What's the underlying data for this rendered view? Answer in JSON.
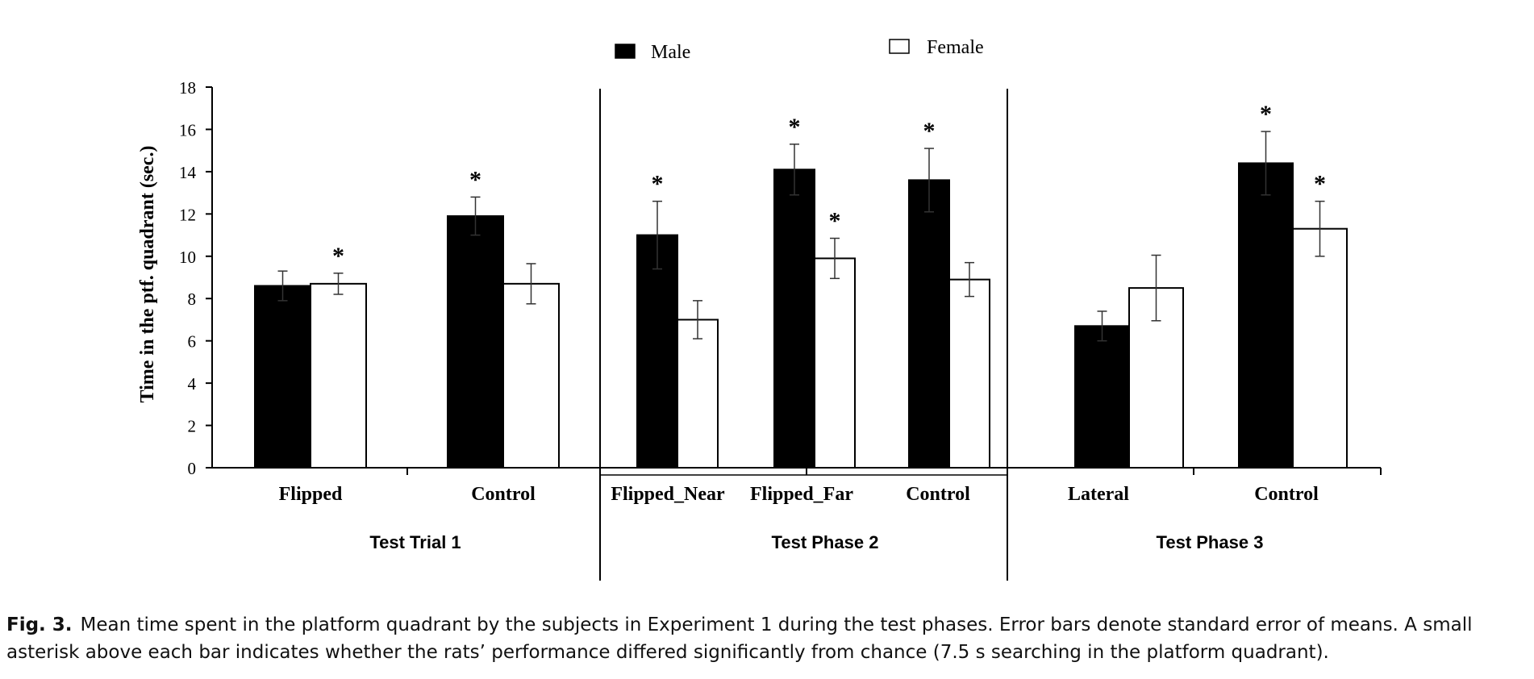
{
  "chart_data": {
    "type": "bar",
    "ylabel": "Time in the ptf. quadrant (sec.)",
    "ylim": [
      0,
      18
    ],
    "yticks": [
      "0",
      "2",
      "4",
      "6",
      "8",
      "10",
      "12",
      "14",
      "16",
      "18"
    ],
    "legend": [
      {
        "name": "Male",
        "color": "#000000"
      },
      {
        "name": "Female",
        "color": "#ffffff"
      }
    ],
    "groups": [
      {
        "label": "Test Trial 1",
        "categories": [
          "Flipped",
          "Control"
        ]
      },
      {
        "label": "Test Phase 2",
        "categories": [
          "Flipped_Near",
          "Flipped_Far",
          "Control"
        ]
      },
      {
        "label": "Test Phase 3",
        "categories": [
          "Lateral",
          "Control"
        ]
      }
    ],
    "categories": [
      "Flipped",
      "Control",
      "Flipped_Near",
      "Flipped_Far",
      "Control",
      "Lateral",
      "Control"
    ],
    "series": [
      {
        "name": "Male",
        "values": [
          8.6,
          11.9,
          11.0,
          14.1,
          13.6,
          6.7,
          14.4
        ],
        "errors": [
          0.7,
          0.9,
          1.6,
          1.2,
          1.5,
          0.7,
          1.5
        ],
        "significant": [
          false,
          true,
          true,
          true,
          true,
          false,
          true
        ]
      },
      {
        "name": "Female",
        "values": [
          8.7,
          8.7,
          7.0,
          9.9,
          8.9,
          8.5,
          11.3
        ],
        "errors": [
          0.5,
          0.95,
          0.9,
          0.95,
          0.8,
          1.55,
          1.3
        ],
        "significant": [
          true,
          false,
          false,
          true,
          false,
          false,
          true
        ]
      }
    ],
    "significance_marker": "*"
  },
  "caption": {
    "label": "Fig. 3.",
    "text": "Mean time spent in the platform quadrant by the subjects in Experiment 1 during the test phases. Error bars denote standard error of means. A small asterisk above each bar indicates whether the rats’ performance differed significantly from chance (7.5 s searching in the platform quadrant)."
  }
}
